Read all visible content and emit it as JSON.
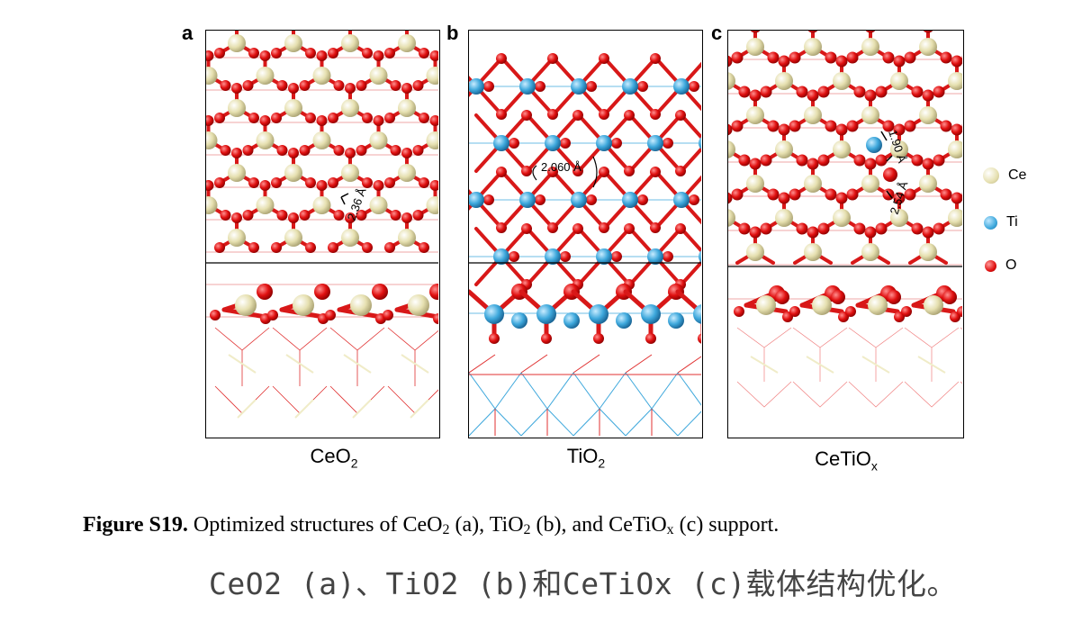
{
  "panels": [
    {
      "letter": "a",
      "label_main": "CeO",
      "label_sub": "2",
      "annotations": [
        "2.36 Å"
      ]
    },
    {
      "letter": "b",
      "label_main": "TiO",
      "label_sub": "2",
      "annotations": [
        "2.060 Å"
      ]
    },
    {
      "letter": "c",
      "label_main": "CeTiO",
      "label_sub": "x",
      "annotations": [
        "1.90 Å",
        "2.54 Å"
      ]
    }
  ],
  "legend": [
    {
      "label": "Ce",
      "color": "#f0ecc8",
      "icon": "ce-atom-icon"
    },
    {
      "label": "Ti",
      "color": "#3ea8dc",
      "icon": "ti-atom-icon"
    },
    {
      "label": "O",
      "color": "#e01010",
      "icon": "o-atom-icon"
    }
  ],
  "caption": {
    "bold": "Figure S19.",
    "p1": " Optimized structures of CeO",
    "s1": "2",
    "p2": " (a), TiO",
    "s2": "2",
    "p3": " (b), and CeTiO",
    "s3": "x",
    "p4": " (c) support."
  },
  "translation": "CeO2 (a)、TiO2 (b)和CeTiOx (c)载体结构优化。",
  "colors": {
    "ce": "#f0ecc8",
    "ti": "#3ea8dc",
    "o": "#e01010"
  }
}
